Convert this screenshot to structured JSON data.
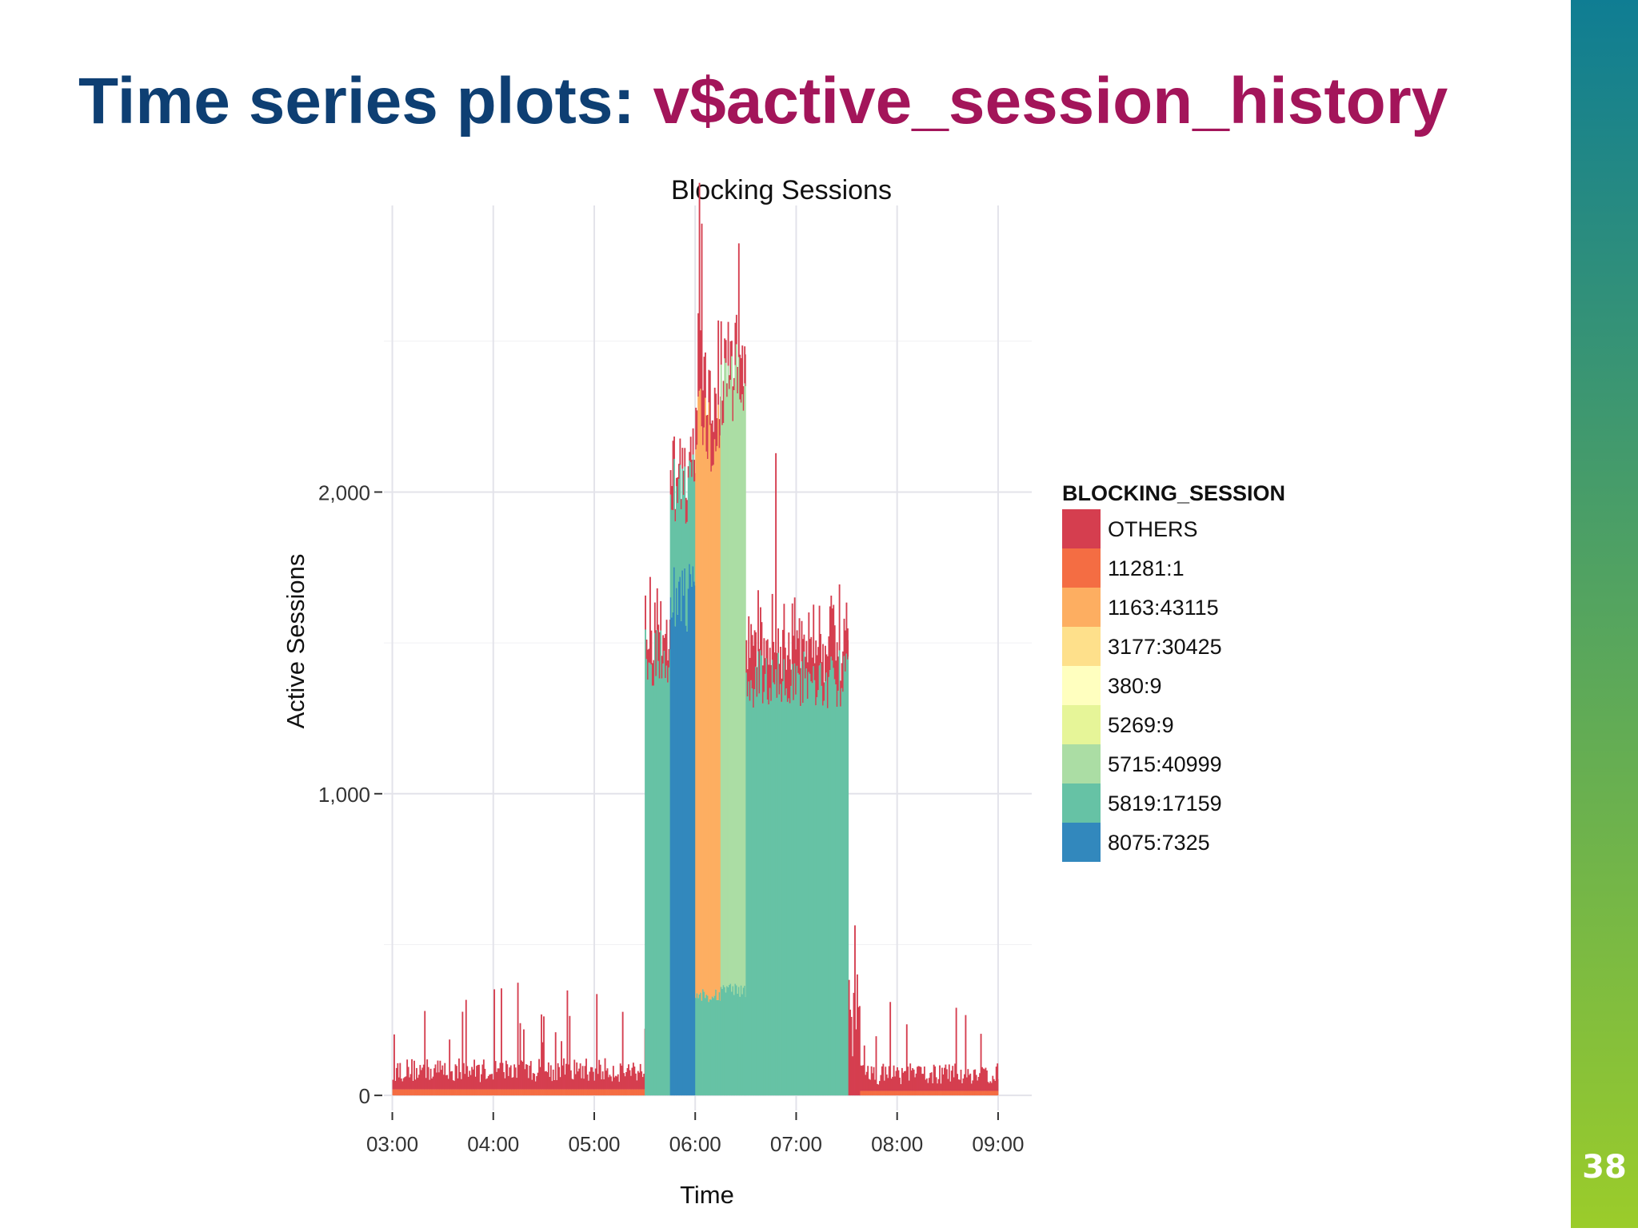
{
  "slide": {
    "title_prefix": "Time series plots: ",
    "title_highlight": "v$active_session_history",
    "page_number": "38",
    "colors": {
      "title_prefix": "#0e3f73",
      "title_highlight": "#a3155a",
      "sidebar_top": "#0f7d93",
      "sidebar_bottom": "#9bcc2a"
    }
  },
  "chart_data": {
    "type": "area",
    "stacked": true,
    "title": "Blocking Sessions",
    "xlabel": "Time",
    "ylabel": "Active Sessions",
    "x_ticks": [
      "03:00",
      "04:00",
      "05:00",
      "06:00",
      "07:00",
      "08:00",
      "09:00"
    ],
    "y_ticks": [
      "0",
      "1,000",
      "2,000"
    ],
    "xlim": [
      "02:55",
      "09:20"
    ],
    "ylim": [
      -50,
      2950
    ],
    "grid": true,
    "legend_title": "BLOCKING_SESSION",
    "legend_position": "right",
    "series": [
      {
        "name": "OTHERS",
        "color": "#d53e4f"
      },
      {
        "name": "11281:1",
        "color": "#f46d43"
      },
      {
        "name": "1163:43115",
        "color": "#fdae61"
      },
      {
        "name": "3177:30425",
        "color": "#fee08b"
      },
      {
        "name": "380:9",
        "color": "#ffffbf"
      },
      {
        "name": "5269:9",
        "color": "#e6f598"
      },
      {
        "name": "5715:40999",
        "color": "#abdda4"
      },
      {
        "name": "5819:17159",
        "color": "#66c2a5"
      },
      {
        "name": "8075:7325",
        "color": "#3288bd"
      }
    ],
    "segments": [
      {
        "start": "03:00",
        "end": "05:30",
        "values": {
          "11281:1": 20,
          "OTHERS": 80
        }
      },
      {
        "start": "05:30",
        "end": "05:45",
        "values": {
          "5819:17159": 1450,
          "OTHERS": 120
        }
      },
      {
        "start": "05:45",
        "end": "06:00",
        "values": {
          "8075:7325": 1650,
          "5819:17159": 350,
          "OTHERS": 70
        }
      },
      {
        "start": "06:00",
        "end": "06:15",
        "values": {
          "5819:17159": 330,
          "1163:43115": 1880,
          "OTHERS": 220
        }
      },
      {
        "start": "06:15",
        "end": "06:30",
        "values": {
          "5819:17159": 350,
          "5715:40999": 2000,
          "OTHERS": 130
        }
      },
      {
        "start": "06:30",
        "end": "07:31",
        "values": {
          "5819:17159": 1380,
          "OTHERS": 170
        }
      },
      {
        "start": "07:31",
        "end": "07:38",
        "values": {
          "5819:17159": 0,
          "OTHERS": 320
        }
      },
      {
        "start": "07:38",
        "end": "09:00",
        "values": {
          "11281:1": 15,
          "OTHERS": 70
        }
      }
    ]
  }
}
